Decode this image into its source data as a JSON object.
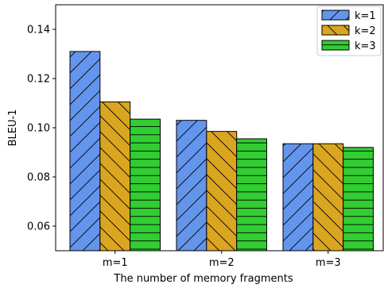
{
  "chart_data": {
    "type": "bar",
    "title": "",
    "xlabel": "The number of memory fragments",
    "ylabel": "BLEU-1",
    "categories": [
      "m=1",
      "m=2",
      "m=3"
    ],
    "ylim": [
      0.05,
      0.15
    ],
    "yticks": [
      0.06,
      0.08,
      0.1,
      0.12,
      0.14
    ],
    "ytick_labels": [
      "0.06",
      "0.08",
      "0.10",
      "0.12",
      "0.14"
    ],
    "grid": false,
    "legend_position": "top-right",
    "series": [
      {
        "name": "k=1",
        "color": "#6495ED",
        "hatch": "forward-diagonal",
        "values": [
          0.131,
          0.103,
          0.0935
        ]
      },
      {
        "name": "k=2",
        "color": "#DAA520",
        "hatch": "back-diagonal",
        "values": [
          0.1105,
          0.0985,
          0.0935
        ]
      },
      {
        "name": "k=3",
        "color": "#32CD32",
        "hatch": "horizontal",
        "values": [
          0.1035,
          0.0955,
          0.092
        ]
      }
    ]
  }
}
